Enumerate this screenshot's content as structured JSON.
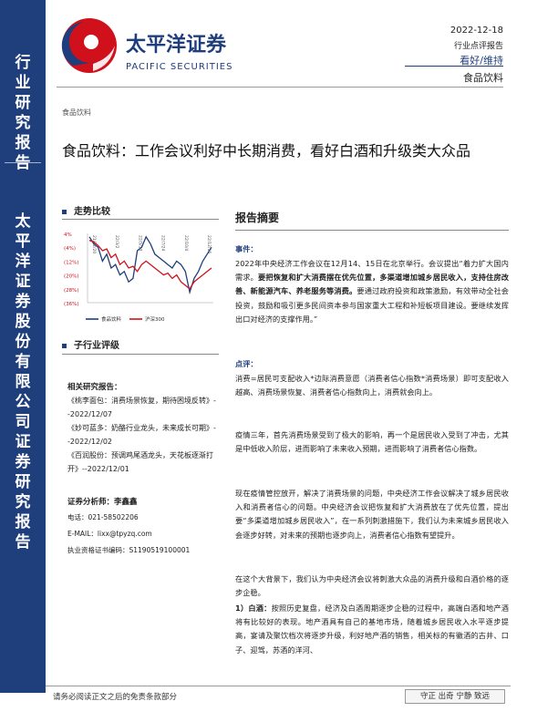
{
  "sidebar": {
    "top_chars": [
      "行",
      "业",
      "研",
      "究",
      "报",
      "告"
    ],
    "bottom_chars": [
      "太",
      "平",
      "洋",
      "证",
      "券",
      "股",
      "份",
      "有",
      "限",
      "公",
      "司",
      "证",
      "券",
      "研",
      "究",
      "报",
      "告"
    ]
  },
  "logo": {
    "name_cn": "太平洋证券",
    "name_en": "PACIFIC SECURITIES",
    "brand_color": "#d0101b",
    "navy": "#1f3e7c"
  },
  "header": {
    "date": "2022-12-18",
    "report_type": "行业点评报告",
    "rating": "看好/维持",
    "sector": "食品饮料"
  },
  "breadcrumb": "食品饮料",
  "title": "食品饮料：工作会议利好中长期消费，看好白酒和升级类大众品",
  "trend": {
    "heading": "走势比较",
    "chart_data": {
      "type": "line",
      "y_ticks": [
        "4%",
        "(4%)",
        "(12%)",
        "(20%)",
        "(28%)",
        "(36%)"
      ],
      "x_ticks": [
        "21/12/20",
        "22/3/2",
        "22/5/13",
        "22/7/24",
        "22/10/4",
        "22/12/15"
      ],
      "series": [
        {
          "name": "食品饮料",
          "color": "#1f3e7c",
          "values": [
            2,
            -2,
            -4,
            -12,
            -8,
            -16,
            -14,
            -20,
            -18,
            -24,
            -22,
            -6,
            -4,
            2,
            -2,
            -8,
            -10,
            -12,
            -14,
            -16,
            -12,
            -14,
            -18,
            -30,
            -22,
            -18,
            -12,
            -8,
            -4
          ]
        },
        {
          "name": "沪深300",
          "color": "#d0101b",
          "values": [
            0,
            -1,
            -3,
            -6,
            -5,
            -10,
            -8,
            -14,
            -12,
            -16,
            -15,
            -18,
            -14,
            -12,
            -14,
            -16,
            -18,
            -20,
            -19,
            -22,
            -20,
            -24,
            -26,
            -28,
            -24,
            -22,
            -20,
            -18,
            -16
          ]
        }
      ]
    }
  },
  "rating_section": {
    "heading": "子行业评级"
  },
  "related": {
    "heading": "相关研究报告：",
    "items": [
      "《桃李面包：消费场景恢复，期待困境反转》--2022/12/07",
      "《妙可蓝多：奶酪行业龙头，未来成长可期》--2022/12/02",
      "《百润股份：预调鸡尾酒龙头，天花板逐渐打开》--2022/12/01"
    ]
  },
  "analyst": {
    "label": "证券分析师：李鑫鑫",
    "phone": "电话：021-58502206",
    "email": "E-MAIL：lixx@tpyzq.com",
    "license": "执业资格证书编码：S1190519100001"
  },
  "abstract": {
    "heading": "报告摘要",
    "event_label": "事件：",
    "event_text_1": "2022年中央经济工作会议在12月14、15日在北京举行。会议提出“着力扩大国内需求。",
    "event_text_bold": "要把恢复和扩大消费摆在优先位置，多渠道增加城乡居民收入，支持住房改善、新能源汽车、养老服务等消费。",
    "event_text_2": "要通过政府投资和政策激励，有效带动全社会投资，鼓励和吸引更多民间资本参与国家重大工程和补短板项目建设。要继续发挥出口对经济的支撑作用。”",
    "comment_label": "点评：",
    "p1": "消费=居民可支配收入*边际消费意愿（消费者信心指数*消费场景）即可支配收入越高、消费场景恢复、消费者信心指数向上，消费就会向上。",
    "p2": "疫情三年，首先消费场景受到了极大的影响，再一个是居民收入受到了冲击，尤其是中低收入阶层，进而影响了未来收入预期，进而影响了消费者信心指数。",
    "p3": "现在疫情管控放开，解决了消费场景的问题，中央经济工作会议解决了城乡居民收入和消费者信心的问题。中央经济会议把恢复和扩大消费放在了优先位置，提出要“多渠道增加城乡居民收入”，在一系列刺激措施下，我们认为未来城乡居民收入会逐步好转，对未来的预期也逐步向上，消费者信心指数有望提升。",
    "p4": "在这个大背景下，我们认为中央经济会议将刺激大众品的消费升级和白酒价格的逐步企稳。",
    "p5_label": "1）白酒：",
    "p5": "按照历史复盘，经济及白酒周期逐步企稳的过程中，高端白酒和地产酒将有比较好的表现。地产酒具有自己的基地市场，随着城乡居民收入水平逐步提高，宴请及聚饮档次将逐步升级，利好地产酒的销售，相关标的有徽酒的古井、口子、迎驾，苏酒的洋河、"
  },
  "footer": {
    "disclaimer": "请务必阅读正文之后的免责条款部分",
    "motto": "守正  出奇  宁静  致远"
  }
}
